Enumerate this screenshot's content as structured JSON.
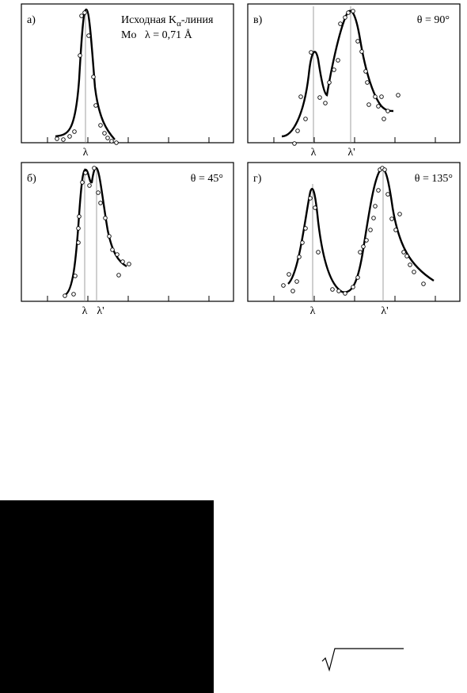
{
  "panels": [
    {
      "label": "а)",
      "title": {
        "prefix": "Исходная K",
        "subscript": "α",
        "suffix": "-линия"
      },
      "note": "Mo   λ = 0,71 Å",
      "x_labels": [
        "λ"
      ]
    },
    {
      "label": "в)",
      "angle": "θ = 90°",
      "x_labels": [
        "λ",
        "λ'"
      ]
    },
    {
      "label": "б)",
      "angle": "θ = 45°",
      "x_labels": [
        "λ",
        "λ'"
      ]
    },
    {
      "label": "г)",
      "angle": "θ = 135°",
      "x_labels": [
        "λ",
        "λ'"
      ]
    }
  ]
}
